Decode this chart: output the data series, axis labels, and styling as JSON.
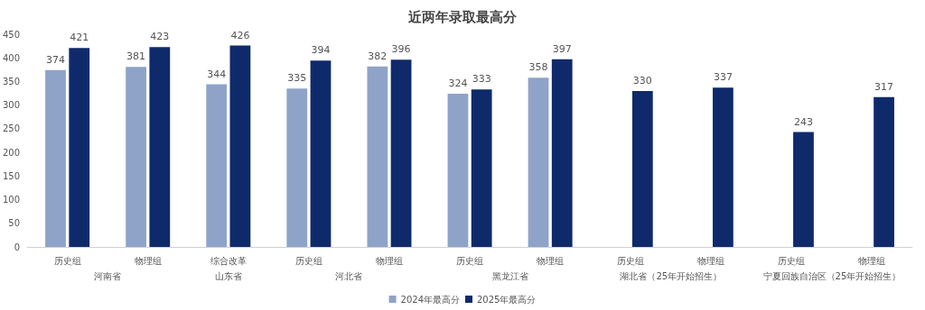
{
  "chart_data": {
    "type": "bar",
    "title": "近两年录取最高分",
    "categories": [
      "历史组",
      "物理组",
      "综合改革",
      "历史组",
      "物理组",
      "历史组",
      "物理组",
      "历史组",
      "物理组",
      "历史组",
      "物理组"
    ],
    "series": [
      {
        "name": "2024年最高分",
        "color": "#8fa3c8",
        "values": [
          374,
          381,
          344,
          335,
          382,
          324,
          358,
          null,
          null,
          null,
          null
        ]
      },
      {
        "name": "2025年最高分",
        "color": "#0f2a6b",
        "values": [
          421,
          423,
          426,
          394,
          396,
          333,
          397,
          330,
          337,
          243,
          317
        ]
      }
    ],
    "annotations": [
      "河南省",
      "山东省",
      "河北省",
      "黑龙江省",
      "湖北省（25年开始招生）",
      "宁夏回族自治区（25年开始招生）"
    ],
    "ylim": [
      0,
      450
    ],
    "yticks": [
      0,
      50,
      100,
      150,
      200,
      250,
      300,
      350,
      400,
      450
    ],
    "grid": false,
    "legend": "bottom",
    "data_labels": true
  }
}
